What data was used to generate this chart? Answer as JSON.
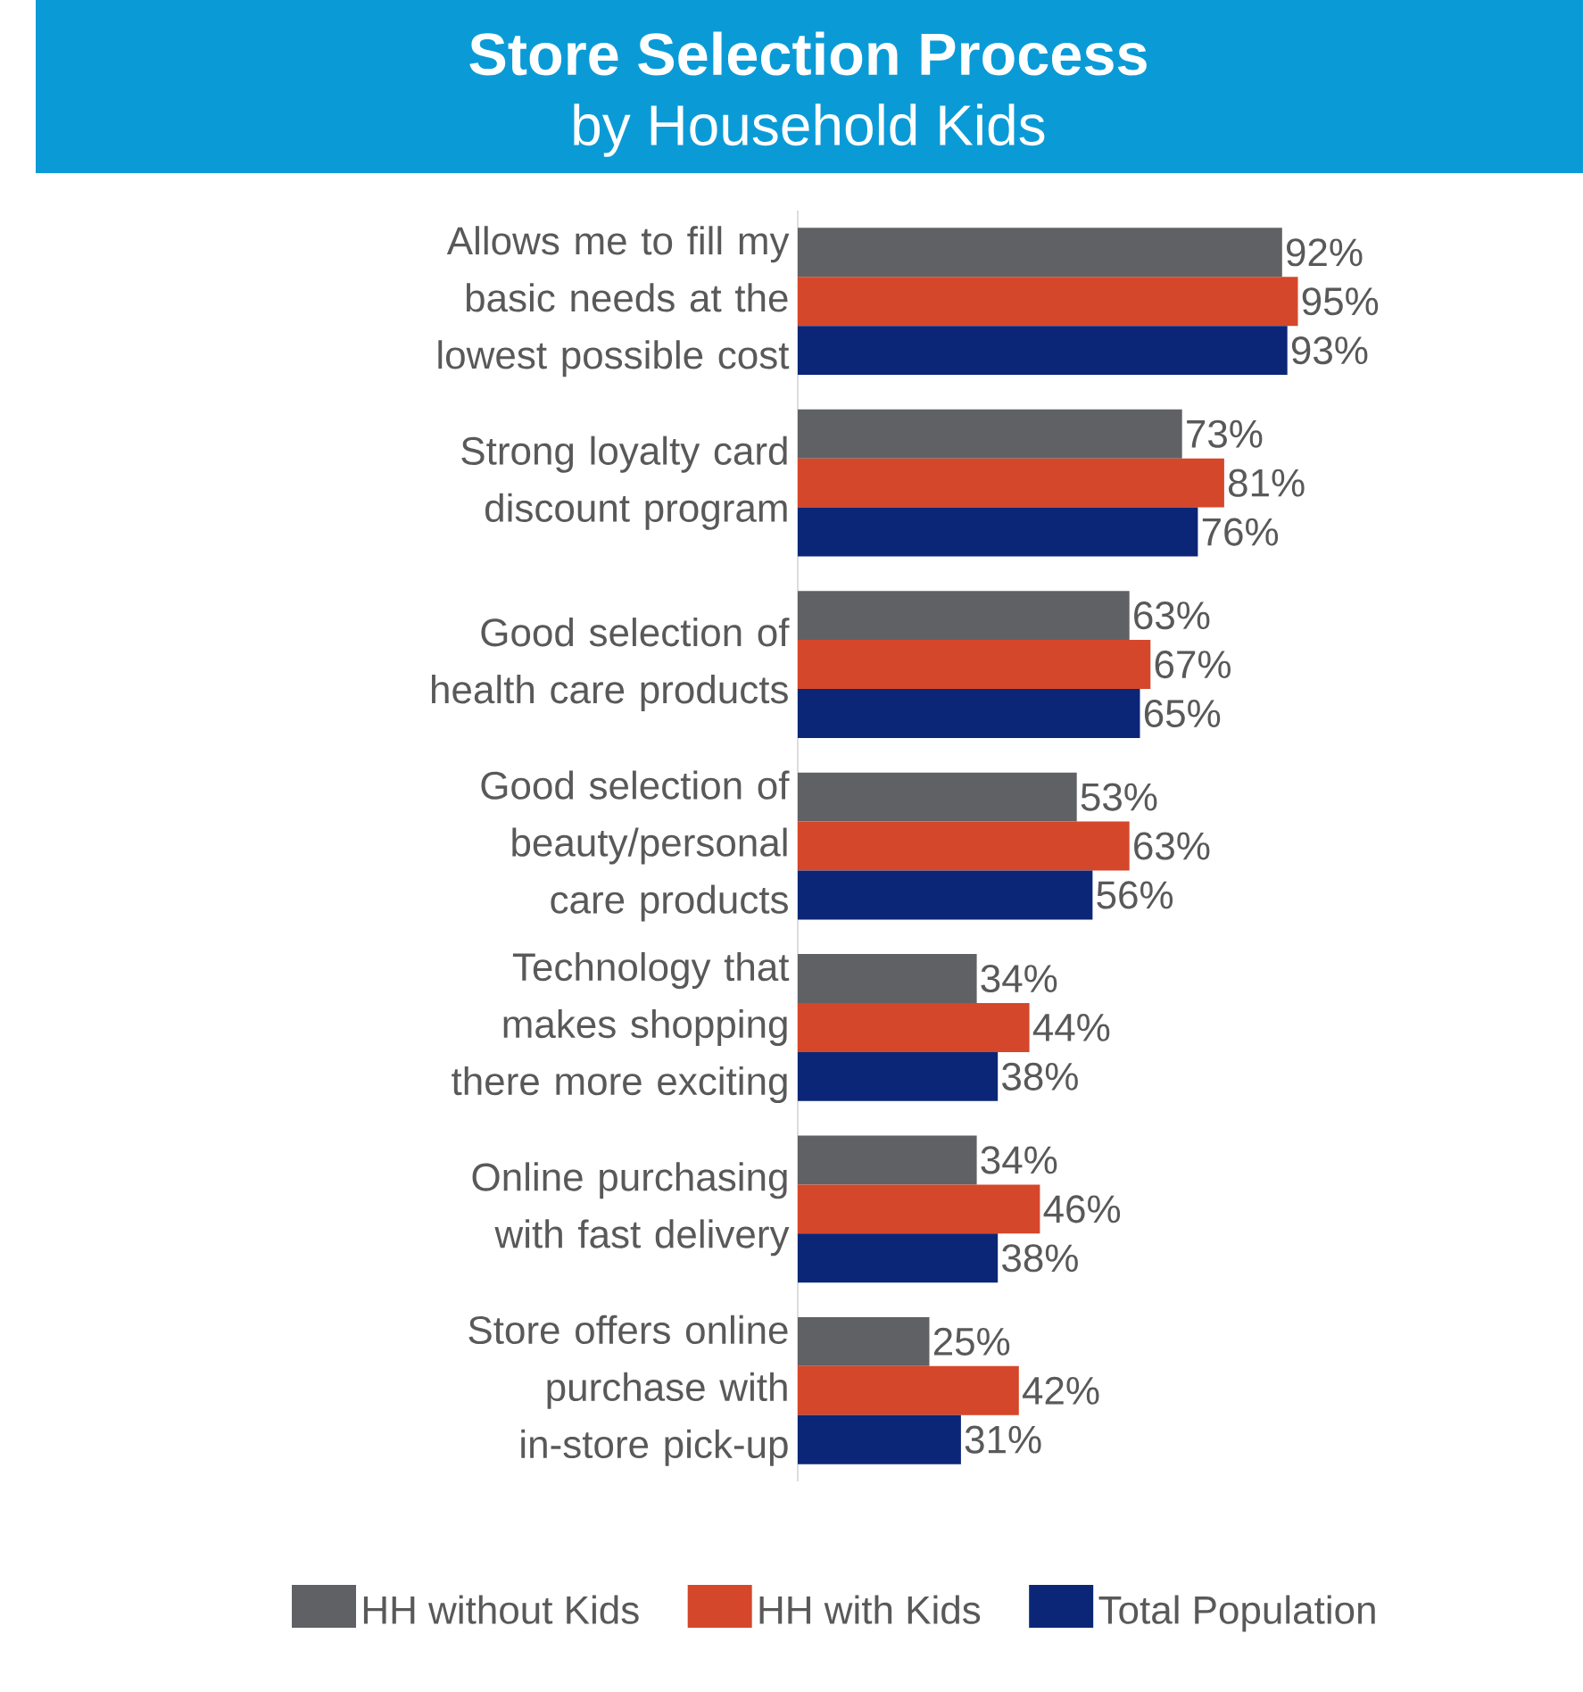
{
  "chart_data": {
    "type": "bar",
    "orientation": "horizontal",
    "title": "Store Selection Process",
    "subtitle": "by Household Kids",
    "categories": [
      "Allows me to fill my basic needs at the lowest possible cost",
      "Strong loyalty card discount program",
      "Good selection of health care products",
      "Good selection of beauty/personal care products",
      "Technology that makes shopping there more exciting",
      "Online purchasing with fast delivery",
      "Store offers online purchase with in-store pick-up"
    ],
    "series": [
      {
        "name": "HH without Kids",
        "color": "#606164",
        "values": [
          92,
          73,
          63,
          53,
          34,
          34,
          25
        ],
        "value_labels": [
          "92%",
          "73%",
          "63%",
          "53%",
          "34%",
          "34%",
          "25%"
        ]
      },
      {
        "name": "HH with Kids",
        "color": "#d5472a",
        "values": [
          95,
          81,
          67,
          63,
          44,
          46,
          42
        ],
        "value_labels": [
          "95%",
          "81%",
          "67%",
          "63%",
          "44%",
          "46%",
          "42%"
        ]
      },
      {
        "name": "Total Population",
        "color": "#0b2677",
        "values": [
          93,
          76,
          65,
          56,
          38,
          38,
          31
        ],
        "value_labels": [
          "93%",
          "76%",
          "65%",
          "56%",
          "38%",
          "38%",
          "31%"
        ]
      }
    ],
    "legend": "bottom"
  }
}
